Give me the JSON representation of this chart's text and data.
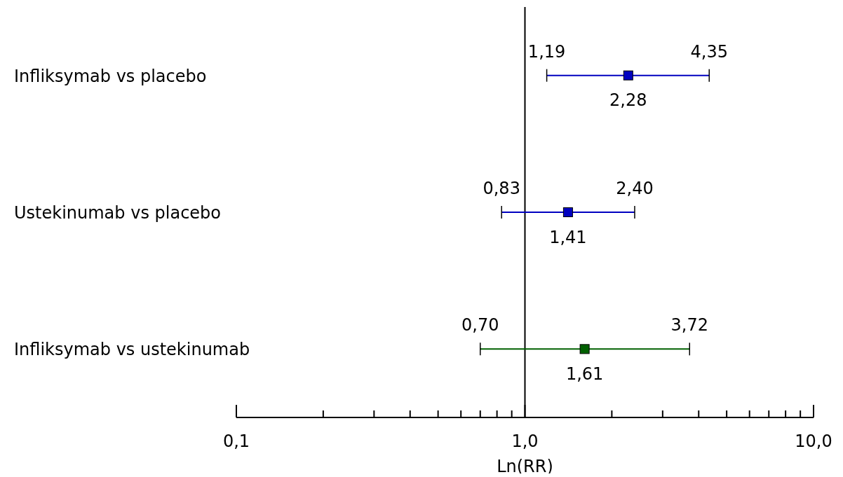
{
  "chart_data": {
    "type": "scatter",
    "orientation": "horizontal",
    "xlabel": "Ln(RR)",
    "categories": [
      "Infliksymab vs placebo",
      "Ustekinumab vs placebo",
      "Infliksymab vs ustekinumab"
    ],
    "values": [
      2.28,
      1.41,
      1.61
    ],
    "errors": [
      [
        1.19,
        4.35
      ],
      [
        0.83,
        2.4
      ],
      [
        0.7,
        3.72
      ]
    ],
    "colors": [
      "#0000c0",
      "#0000c0",
      "#006000"
    ],
    "value_labels": [
      "2,28",
      "1,41",
      "1,61"
    ],
    "annotations": [
      "1,19",
      "4,35",
      "0,83",
      "2,40",
      "0,70",
      "3,72"
    ],
    "xlim": [
      0.1,
      10
    ],
    "log": "x",
    "xticks": [
      {
        "value": 0.1,
        "label": "0,1"
      },
      {
        "value": 0.2,
        "label": null
      },
      {
        "value": 0.3,
        "label": null
      },
      {
        "value": 0.4,
        "label": null
      },
      {
        "value": 0.5,
        "label": null
      },
      {
        "value": 0.6,
        "label": null
      },
      {
        "value": 0.7,
        "label": null
      },
      {
        "value": 0.8,
        "label": null
      },
      {
        "value": 0.9,
        "label": null
      },
      {
        "value": 1,
        "label": "1,0"
      },
      {
        "value": 2,
        "label": null
      },
      {
        "value": 3,
        "label": null
      },
      {
        "value": 4,
        "label": null
      },
      {
        "value": 5,
        "label": null
      },
      {
        "value": 6,
        "label": null
      },
      {
        "value": 7,
        "label": null
      },
      {
        "value": 8,
        "label": null
      },
      {
        "value": 9,
        "label": null
      },
      {
        "value": 10,
        "label": "10,0"
      }
    ],
    "ref_lines": [
      {
        "axis": "x",
        "value": 1,
        "color": "#000000"
      }
    ],
    "marker": "square",
    "grid": false,
    "legend": false
  }
}
